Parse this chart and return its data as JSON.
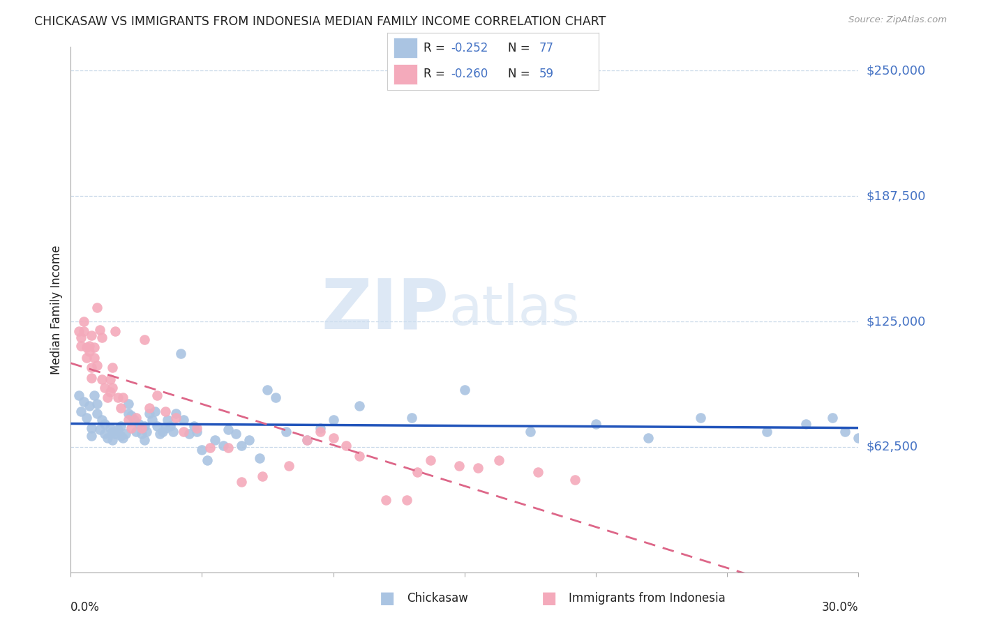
{
  "title": "CHICKASAW VS IMMIGRANTS FROM INDONESIA MEDIAN FAMILY INCOME CORRELATION CHART",
  "source": "Source: ZipAtlas.com",
  "ylabel": "Median Family Income",
  "ytick_vals": [
    62500,
    125000,
    187500,
    250000
  ],
  "ytick_labels": [
    "$62,500",
    "$125,000",
    "$187,500",
    "$250,000"
  ],
  "xmin": 0.0,
  "xmax": 0.3,
  "ymin": 0,
  "ymax": 262000,
  "watermark_zip": "ZIP",
  "watermark_atlas": "atlas",
  "legend_r1_prefix": "R = ",
  "legend_r1_val": "-0.252",
  "legend_n1_prefix": "  N = ",
  "legend_n1_val": "77",
  "legend_r2_prefix": "R = ",
  "legend_r2_val": "-0.260",
  "legend_n2_prefix": "  N = ",
  "legend_n2_val": "59",
  "series1_label": "Chickasaw",
  "series2_label": "Immigrants from Indonesia",
  "series1_color": "#aac4e2",
  "series2_color": "#f4aabb",
  "series1_line_color": "#2255bb",
  "series2_line_color": "#dd6688",
  "text_blue": "#4472c4",
  "text_black": "#222222",
  "grid_color": "#c8d8e8",
  "series1_x": [
    0.003,
    0.004,
    0.005,
    0.006,
    0.007,
    0.008,
    0.008,
    0.009,
    0.01,
    0.01,
    0.011,
    0.012,
    0.013,
    0.013,
    0.014,
    0.015,
    0.016,
    0.016,
    0.017,
    0.018,
    0.019,
    0.019,
    0.02,
    0.021,
    0.022,
    0.022,
    0.023,
    0.024,
    0.025,
    0.026,
    0.027,
    0.028,
    0.028,
    0.029,
    0.03,
    0.031,
    0.032,
    0.033,
    0.034,
    0.035,
    0.036,
    0.037,
    0.038,
    0.039,
    0.04,
    0.042,
    0.043,
    0.045,
    0.047,
    0.048,
    0.05,
    0.052,
    0.055,
    0.058,
    0.06,
    0.063,
    0.065,
    0.068,
    0.072,
    0.075,
    0.078,
    0.082,
    0.09,
    0.095,
    0.1,
    0.11,
    0.13,
    0.15,
    0.175,
    0.2,
    0.22,
    0.24,
    0.265,
    0.28,
    0.29,
    0.295,
    0.3
  ],
  "series1_y": [
    88000,
    80000,
    85000,
    77000,
    83000,
    72000,
    68000,
    88000,
    79000,
    84000,
    71000,
    76000,
    69000,
    74000,
    67000,
    72000,
    70000,
    66000,
    69000,
    71000,
    73000,
    68000,
    67000,
    69000,
    79000,
    84000,
    78000,
    76000,
    70000,
    74000,
    69000,
    73000,
    66000,
    70000,
    79000,
    76000,
    80000,
    73000,
    69000,
    70000,
    72000,
    76000,
    73000,
    70000,
    79000,
    109000,
    76000,
    69000,
    73000,
    70000,
    61000,
    56000,
    66000,
    63000,
    71000,
    69000,
    63000,
    66000,
    57000,
    91000,
    87000,
    70000,
    66000,
    72000,
    76000,
    83000,
    77000,
    91000,
    70000,
    74000,
    67000,
    77000,
    70000,
    74000,
    77000,
    70000,
    67000
  ],
  "series2_x": [
    0.003,
    0.004,
    0.004,
    0.005,
    0.005,
    0.006,
    0.006,
    0.007,
    0.007,
    0.008,
    0.008,
    0.008,
    0.009,
    0.009,
    0.01,
    0.01,
    0.011,
    0.012,
    0.012,
    0.013,
    0.014,
    0.015,
    0.015,
    0.016,
    0.016,
    0.017,
    0.018,
    0.019,
    0.02,
    0.022,
    0.023,
    0.025,
    0.027,
    0.028,
    0.03,
    0.033,
    0.036,
    0.04,
    0.043,
    0.048,
    0.053,
    0.06,
    0.065,
    0.073,
    0.083,
    0.09,
    0.095,
    0.1,
    0.105,
    0.11,
    0.12,
    0.128,
    0.132,
    0.137,
    0.148,
    0.155,
    0.163,
    0.178,
    0.192
  ],
  "series2_y": [
    120000,
    117000,
    113000,
    125000,
    120000,
    112000,
    107000,
    113000,
    110000,
    102000,
    118000,
    97000,
    112000,
    107000,
    103000,
    132000,
    121000,
    117000,
    96000,
    92000,
    87000,
    90000,
    96000,
    102000,
    92000,
    120000,
    87000,
    82000,
    87000,
    76000,
    72000,
    77000,
    72000,
    116000,
    82000,
    88000,
    80000,
    77000,
    70000,
    72000,
    62000,
    62000,
    45000,
    48000,
    53000,
    66000,
    70000,
    67000,
    63000,
    58000,
    36000,
    36000,
    50000,
    56000,
    53000,
    52000,
    56000,
    50000,
    46000
  ]
}
